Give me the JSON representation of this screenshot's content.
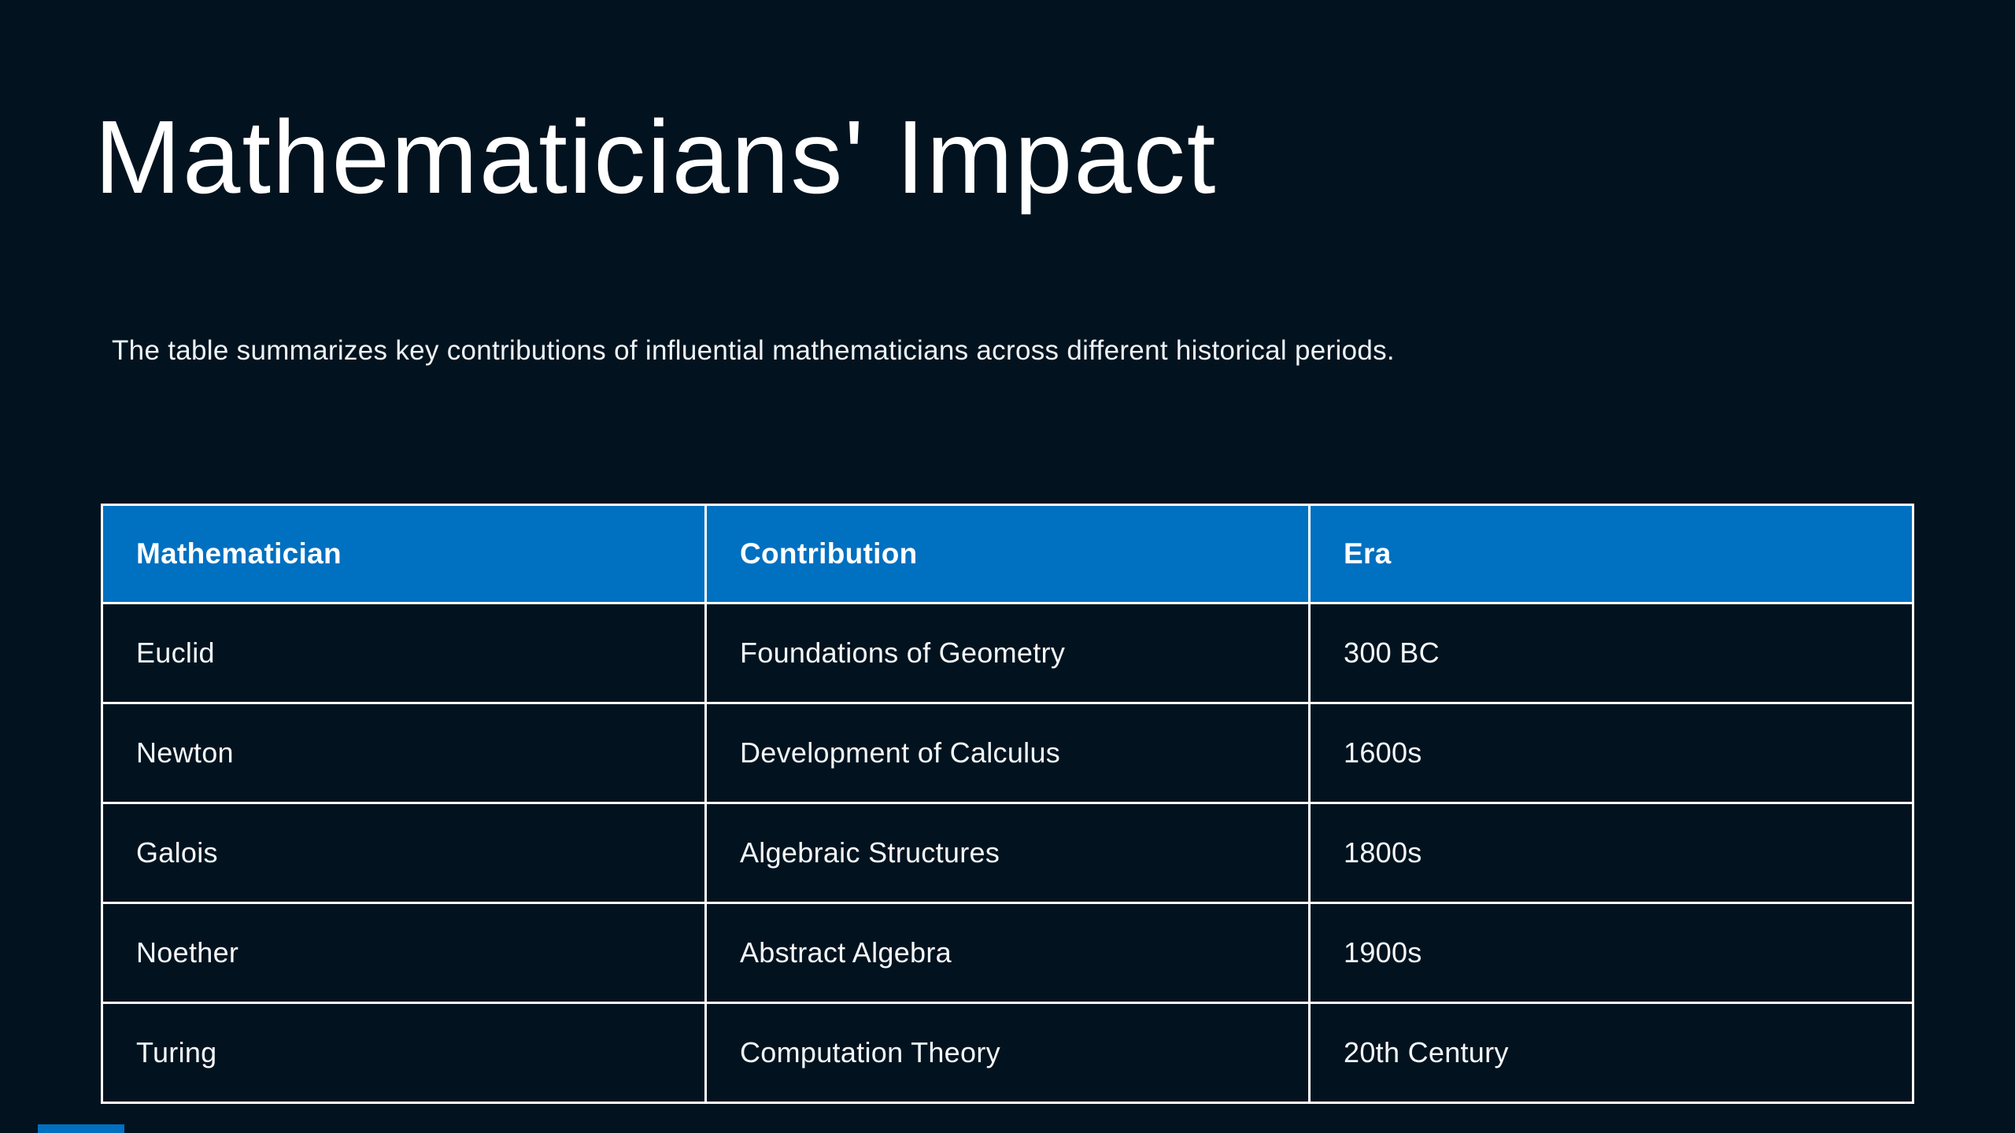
{
  "slide": {
    "title": "Mathematicians' Impact",
    "subtitle": "The table summarizes key contributions of influential mathematicians across different historical periods."
  },
  "table": {
    "columns": [
      "Mathematician",
      "Contribution",
      "Era"
    ],
    "rows": [
      [
        "Euclid",
        "Foundations of Geometry",
        "300 BC"
      ],
      [
        "Newton",
        "Development of Calculus",
        "1600s"
      ],
      [
        "Galois",
        "Algebraic Structures",
        "1800s"
      ],
      [
        "Noether",
        "Abstract Algebra",
        "1900s"
      ],
      [
        "Turing",
        "Computation Theory",
        "20th Century"
      ]
    ]
  },
  "colors": {
    "background": "#02131f",
    "header_blue": "#0070c0",
    "border": "#ffffff",
    "accent_bar": "#0070c0"
  }
}
